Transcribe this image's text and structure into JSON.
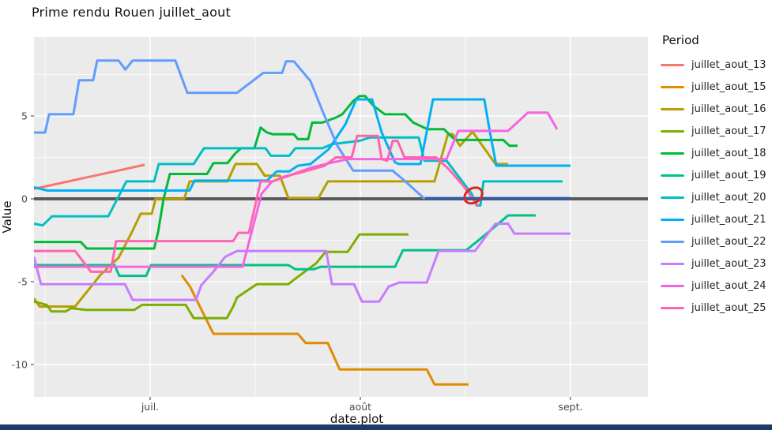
{
  "title": "Prime rendu Rouen juillet_aout",
  "window": {
    "bottom_bar_color": "#1e3a66"
  },
  "panel": {
    "bg": "#ebebeb",
    "grid_color": "#ffffff",
    "tick_color": "#333333",
    "tick_label_color": "#4a4a4a",
    "axis_title_color": "#111111"
  },
  "legend": {
    "title": "Period",
    "items": [
      {
        "label": "juillet_aout_13",
        "color": "#F8766D"
      },
      {
        "label": "juillet_aout_15",
        "color": "#DE8C00"
      },
      {
        "label": "juillet_aout_16",
        "color": "#B79F00"
      },
      {
        "label": "juillet_aout_17",
        "color": "#7CAE00"
      },
      {
        "label": "juillet_aout_18",
        "color": "#00BA38"
      },
      {
        "label": "juillet_aout_19",
        "color": "#00C08B"
      },
      {
        "label": "juillet_aout_20",
        "color": "#00BFC4"
      },
      {
        "label": "juillet_aout_21",
        "color": "#00B0F6"
      },
      {
        "label": "juillet_aout_22",
        "color": "#619CFF"
      },
      {
        "label": "juillet_aout_23",
        "color": "#C77CFF"
      },
      {
        "label": "juillet_aout_24",
        "color": "#F564E3"
      },
      {
        "label": "juillet_aout_25",
        "color": "#FF64B0"
      }
    ]
  },
  "chart_data": {
    "type": "line",
    "title": "Prime rendu Rouen juillet_aout",
    "xlabel": "date.plot",
    "ylabel": "Value",
    "x_unit": "months: 0 = 1 juil., 1 = 1 août, 2 = 1 sept.",
    "x_range": [
      -0.553,
      2.368
    ],
    "y_range": [
      -11.95,
      9.76
    ],
    "x_ticks": [
      {
        "m": 0,
        "label": "juil."
      },
      {
        "m": 1,
        "label": "août"
      },
      {
        "m": 2,
        "label": "sept."
      }
    ],
    "x_minor": [
      -0.5,
      0.5,
      1.5
    ],
    "y_ticks": [
      {
        "v": 5,
        "label": "5"
      },
      {
        "v": 0,
        "label": "0"
      },
      {
        "v": -5,
        "label": "-5"
      },
      {
        "v": -10,
        "label": "-10"
      }
    ],
    "y_minor": [
      7.5,
      2.5,
      -2.5,
      -7.5
    ],
    "zero_line": {
      "y": 0,
      "color": "#595959",
      "overlay_from": 1.308,
      "overlay_to": 2.0,
      "overlay_color": "#3d5a94"
    },
    "annotation_circle": {
      "x": 1.538,
      "y": 0.2,
      "color": "#d62b20"
    },
    "series": [
      {
        "name": "juillet_aout_13",
        "color": "#F8766D",
        "points": [
          [
            -0.553,
            0.6
          ],
          [
            -0.026,
            2.05
          ]
        ]
      },
      {
        "name": "juillet_aout_15",
        "color": "#DE8C00",
        "points": [
          [
            0.15,
            -4.6
          ],
          [
            0.19,
            -5.3
          ],
          [
            0.301,
            -8.15
          ],
          [
            0.703,
            -8.15
          ],
          [
            0.74,
            -8.7
          ],
          [
            0.845,
            -8.7
          ],
          [
            0.902,
            -10.3
          ],
          [
            1.316,
            -10.3
          ],
          [
            1.353,
            -11.2
          ],
          [
            1.515,
            -11.2
          ]
        ]
      },
      {
        "name": "juillet_aout_16",
        "color": "#B79F00",
        "points": [
          [
            -0.553,
            -6.0
          ],
          [
            -0.526,
            -6.5
          ],
          [
            -0.357,
            -6.5
          ],
          [
            -0.237,
            -4.6
          ],
          [
            -0.15,
            -3.55
          ],
          [
            -0.086,
            -2.0
          ],
          [
            -0.045,
            -0.9
          ],
          [
            0.008,
            -0.9
          ],
          [
            0.026,
            0.0
          ],
          [
            0.162,
            0.0
          ],
          [
            0.188,
            1.05
          ],
          [
            0.368,
            1.05
          ],
          [
            0.406,
            2.1
          ],
          [
            0.508,
            2.1
          ],
          [
            0.545,
            1.4
          ],
          [
            0.617,
            1.4
          ],
          [
            0.658,
            0.05
          ],
          [
            0.801,
            0.05
          ],
          [
            0.846,
            1.05
          ],
          [
            1.353,
            1.05
          ],
          [
            1.417,
            3.9
          ],
          [
            1.44,
            3.9
          ],
          [
            1.474,
            3.2
          ],
          [
            1.534,
            4.05
          ],
          [
            1.643,
            2.1
          ],
          [
            1.703,
            2.1
          ]
        ]
      },
      {
        "name": "juillet_aout_17",
        "color": "#7CAE00",
        "points": [
          [
            -0.553,
            -6.2
          ],
          [
            -0.492,
            -6.4
          ],
          [
            -0.47,
            -6.8
          ],
          [
            -0.402,
            -6.8
          ],
          [
            -0.376,
            -6.6
          ],
          [
            -0.304,
            -6.7
          ],
          [
            -0.075,
            -6.7
          ],
          [
            -0.038,
            -6.4
          ],
          [
            0.169,
            -6.4
          ],
          [
            0.207,
            -7.2
          ],
          [
            0.365,
            -7.2
          ],
          [
            0.395,
            -6.5
          ],
          [
            0.414,
            -5.95
          ],
          [
            0.508,
            -5.15
          ],
          [
            0.658,
            -5.15
          ],
          [
            0.714,
            -4.6
          ],
          [
            0.789,
            -3.9
          ],
          [
            0.835,
            -3.2
          ],
          [
            0.94,
            -3.2
          ],
          [
            0.996,
            -2.15
          ],
          [
            1.229,
            -2.15
          ]
        ]
      },
      {
        "name": "juillet_aout_18",
        "color": "#00BA38",
        "points": [
          [
            -0.553,
            -2.6
          ],
          [
            -0.33,
            -2.6
          ],
          [
            -0.301,
            -3.0
          ],
          [
            0.019,
            -3.0
          ],
          [
            0.038,
            -2.0
          ],
          [
            0.064,
            0.0
          ],
          [
            0.094,
            1.5
          ],
          [
            0.271,
            1.5
          ],
          [
            0.301,
            2.15
          ],
          [
            0.368,
            2.15
          ],
          [
            0.402,
            2.7
          ],
          [
            0.432,
            3.05
          ],
          [
            0.496,
            3.05
          ],
          [
            0.526,
            4.3
          ],
          [
            0.556,
            4.0
          ],
          [
            0.583,
            3.9
          ],
          [
            0.684,
            3.9
          ],
          [
            0.703,
            3.6
          ],
          [
            0.752,
            3.6
          ],
          [
            0.771,
            4.6
          ],
          [
            0.82,
            4.6
          ],
          [
            0.883,
            4.9
          ],
          [
            0.914,
            5.1
          ],
          [
            0.966,
            5.9
          ],
          [
            0.996,
            6.2
          ],
          [
            1.023,
            6.2
          ],
          [
            1.064,
            5.6
          ],
          [
            1.117,
            5.1
          ],
          [
            1.214,
            5.1
          ],
          [
            1.252,
            4.6
          ],
          [
            1.32,
            4.2
          ],
          [
            1.398,
            4.2
          ],
          [
            1.451,
            3.55
          ],
          [
            1.68,
            3.55
          ],
          [
            1.71,
            3.2
          ],
          [
            1.748,
            3.2
          ]
        ]
      },
      {
        "name": "juillet_aout_19",
        "color": "#00C08B",
        "points": [
          [
            -0.553,
            -4.0
          ],
          [
            -0.169,
            -4.0
          ],
          [
            -0.147,
            -4.65
          ],
          [
            -0.019,
            -4.65
          ],
          [
            0.004,
            -4.0
          ],
          [
            0.658,
            -4.0
          ],
          [
            0.691,
            -4.25
          ],
          [
            0.778,
            -4.25
          ],
          [
            0.812,
            -4.1
          ],
          [
            1.165,
            -4.1
          ],
          [
            1.203,
            -3.1
          ],
          [
            1.504,
            -3.1
          ],
          [
            1.553,
            -2.6
          ],
          [
            1.62,
            -1.9
          ],
          [
            1.703,
            -1.0
          ],
          [
            1.835,
            -1.0
          ]
        ]
      },
      {
        "name": "juillet_aout_20",
        "color": "#00BFC4",
        "points": [
          [
            -0.553,
            -1.5
          ],
          [
            -0.511,
            -1.6
          ],
          [
            -0.466,
            -1.05
          ],
          [
            -0.199,
            -1.05
          ],
          [
            -0.113,
            1.05
          ],
          [
            0.019,
            1.05
          ],
          [
            0.041,
            2.1
          ],
          [
            0.207,
            2.1
          ],
          [
            0.256,
            3.05
          ],
          [
            0.549,
            3.05
          ],
          [
            0.575,
            2.6
          ],
          [
            0.662,
            2.6
          ],
          [
            0.691,
            3.05
          ],
          [
            0.82,
            3.05
          ],
          [
            0.865,
            3.3
          ],
          [
            0.996,
            3.5
          ],
          [
            1.045,
            3.7
          ],
          [
            1.278,
            3.7
          ],
          [
            1.305,
            2.3
          ],
          [
            1.41,
            2.3
          ],
          [
            1.53,
            0.3
          ],
          [
            1.553,
            -0.4
          ],
          [
            1.571,
            -0.4
          ],
          [
            1.586,
            1.05
          ],
          [
            1.962,
            1.05
          ]
        ]
      },
      {
        "name": "juillet_aout_21",
        "color": "#00B0F6",
        "points": [
          [
            -0.553,
            0.7
          ],
          [
            -0.489,
            0.5
          ],
          [
            0.188,
            0.5
          ],
          [
            0.211,
            1.1
          ],
          [
            0.556,
            1.1
          ],
          [
            0.602,
            1.65
          ],
          [
            0.662,
            1.65
          ],
          [
            0.703,
            2.0
          ],
          [
            0.763,
            2.1
          ],
          [
            0.85,
            3.0
          ],
          [
            0.929,
            4.5
          ],
          [
            0.981,
            6.0
          ],
          [
            1.056,
            6.0
          ],
          [
            1.102,
            4.0
          ],
          [
            1.165,
            2.2
          ],
          [
            1.184,
            2.1
          ],
          [
            1.286,
            2.1
          ],
          [
            1.346,
            6.0
          ],
          [
            1.59,
            6.0
          ],
          [
            1.617,
            4.0
          ],
          [
            1.647,
            2.0
          ],
          [
            2.0,
            2.0
          ]
        ]
      },
      {
        "name": "juillet_aout_22",
        "color": "#619CFF",
        "points": [
          [
            -0.553,
            4.0
          ],
          [
            -0.5,
            4.0
          ],
          [
            -0.481,
            5.1
          ],
          [
            -0.365,
            5.1
          ],
          [
            -0.338,
            7.15
          ],
          [
            -0.271,
            7.15
          ],
          [
            -0.252,
            8.35
          ],
          [
            -0.15,
            8.35
          ],
          [
            -0.118,
            7.8
          ],
          [
            -0.083,
            8.35
          ],
          [
            0.12,
            8.35
          ],
          [
            0.177,
            6.4
          ],
          [
            0.414,
            6.4
          ],
          [
            0.538,
            7.6
          ],
          [
            0.628,
            7.6
          ],
          [
            0.647,
            8.3
          ],
          [
            0.684,
            8.3
          ],
          [
            0.763,
            7.1
          ],
          [
            0.82,
            5.3
          ],
          [
            0.891,
            3.2
          ],
          [
            0.966,
            1.7
          ],
          [
            1.154,
            1.7
          ],
          [
            1.214,
            1.05
          ],
          [
            1.301,
            0.05
          ],
          [
            2.0,
            0.05
          ]
        ]
      },
      {
        "name": "juillet_aout_23",
        "color": "#C77CFF",
        "points": [
          [
            -0.553,
            -3.5
          ],
          [
            -0.519,
            -5.15
          ],
          [
            -0.12,
            -5.15
          ],
          [
            -0.083,
            -6.1
          ],
          [
            0.218,
            -6.1
          ],
          [
            0.244,
            -5.2
          ],
          [
            0.301,
            -4.4
          ],
          [
            0.357,
            -3.5
          ],
          [
            0.414,
            -3.15
          ],
          [
            0.838,
            -3.15
          ],
          [
            0.865,
            -5.15
          ],
          [
            0.97,
            -5.15
          ],
          [
            1.008,
            -6.2
          ],
          [
            1.09,
            -6.2
          ],
          [
            1.135,
            -5.3
          ],
          [
            1.184,
            -5.05
          ],
          [
            1.316,
            -5.05
          ],
          [
            1.372,
            -3.15
          ],
          [
            1.545,
            -3.15
          ],
          [
            1.643,
            -1.5
          ],
          [
            1.703,
            -1.5
          ],
          [
            1.733,
            -2.1
          ],
          [
            2.0,
            -2.1
          ]
        ]
      },
      {
        "name": "juillet_aout_24",
        "color": "#F564E3",
        "points": [
          [
            -0.553,
            -4.1
          ],
          [
            0.44,
            -4.1
          ],
          [
            0.53,
            0.3
          ],
          [
            0.58,
            1.05
          ],
          [
            0.64,
            1.3
          ],
          [
            0.77,
            1.9
          ],
          [
            0.87,
            2.2
          ],
          [
            0.94,
            2.4
          ],
          [
            1.41,
            2.4
          ],
          [
            1.466,
            4.1
          ],
          [
            1.703,
            4.1
          ],
          [
            1.797,
            5.2
          ],
          [
            1.891,
            5.2
          ],
          [
            1.936,
            4.2
          ]
        ]
      },
      {
        "name": "juillet_aout_25",
        "color": "#FF64B0",
        "points": [
          [
            -0.553,
            -3.15
          ],
          [
            -0.357,
            -3.15
          ],
          [
            -0.282,
            -4.4
          ],
          [
            -0.188,
            -4.4
          ],
          [
            -0.162,
            -2.55
          ],
          [
            0.395,
            -2.55
          ],
          [
            0.42,
            -2.05
          ],
          [
            0.47,
            -2.05
          ],
          [
            0.526,
            1.05
          ],
          [
            0.583,
            1.05
          ],
          [
            0.64,
            1.35
          ],
          [
            0.72,
            1.6
          ],
          [
            0.83,
            2.0
          ],
          [
            0.883,
            2.5
          ],
          [
            0.959,
            2.5
          ],
          [
            0.985,
            3.8
          ],
          [
            1.083,
            3.8
          ],
          [
            1.102,
            2.4
          ],
          [
            1.128,
            2.3
          ],
          [
            1.154,
            3.5
          ],
          [
            1.177,
            3.5
          ],
          [
            1.21,
            2.5
          ],
          [
            1.361,
            2.5
          ],
          [
            1.42,
            1.8
          ],
          [
            1.49,
            0.8
          ],
          [
            1.534,
            0.0
          ],
          [
            1.56,
            -0.45
          ]
        ]
      }
    ]
  }
}
